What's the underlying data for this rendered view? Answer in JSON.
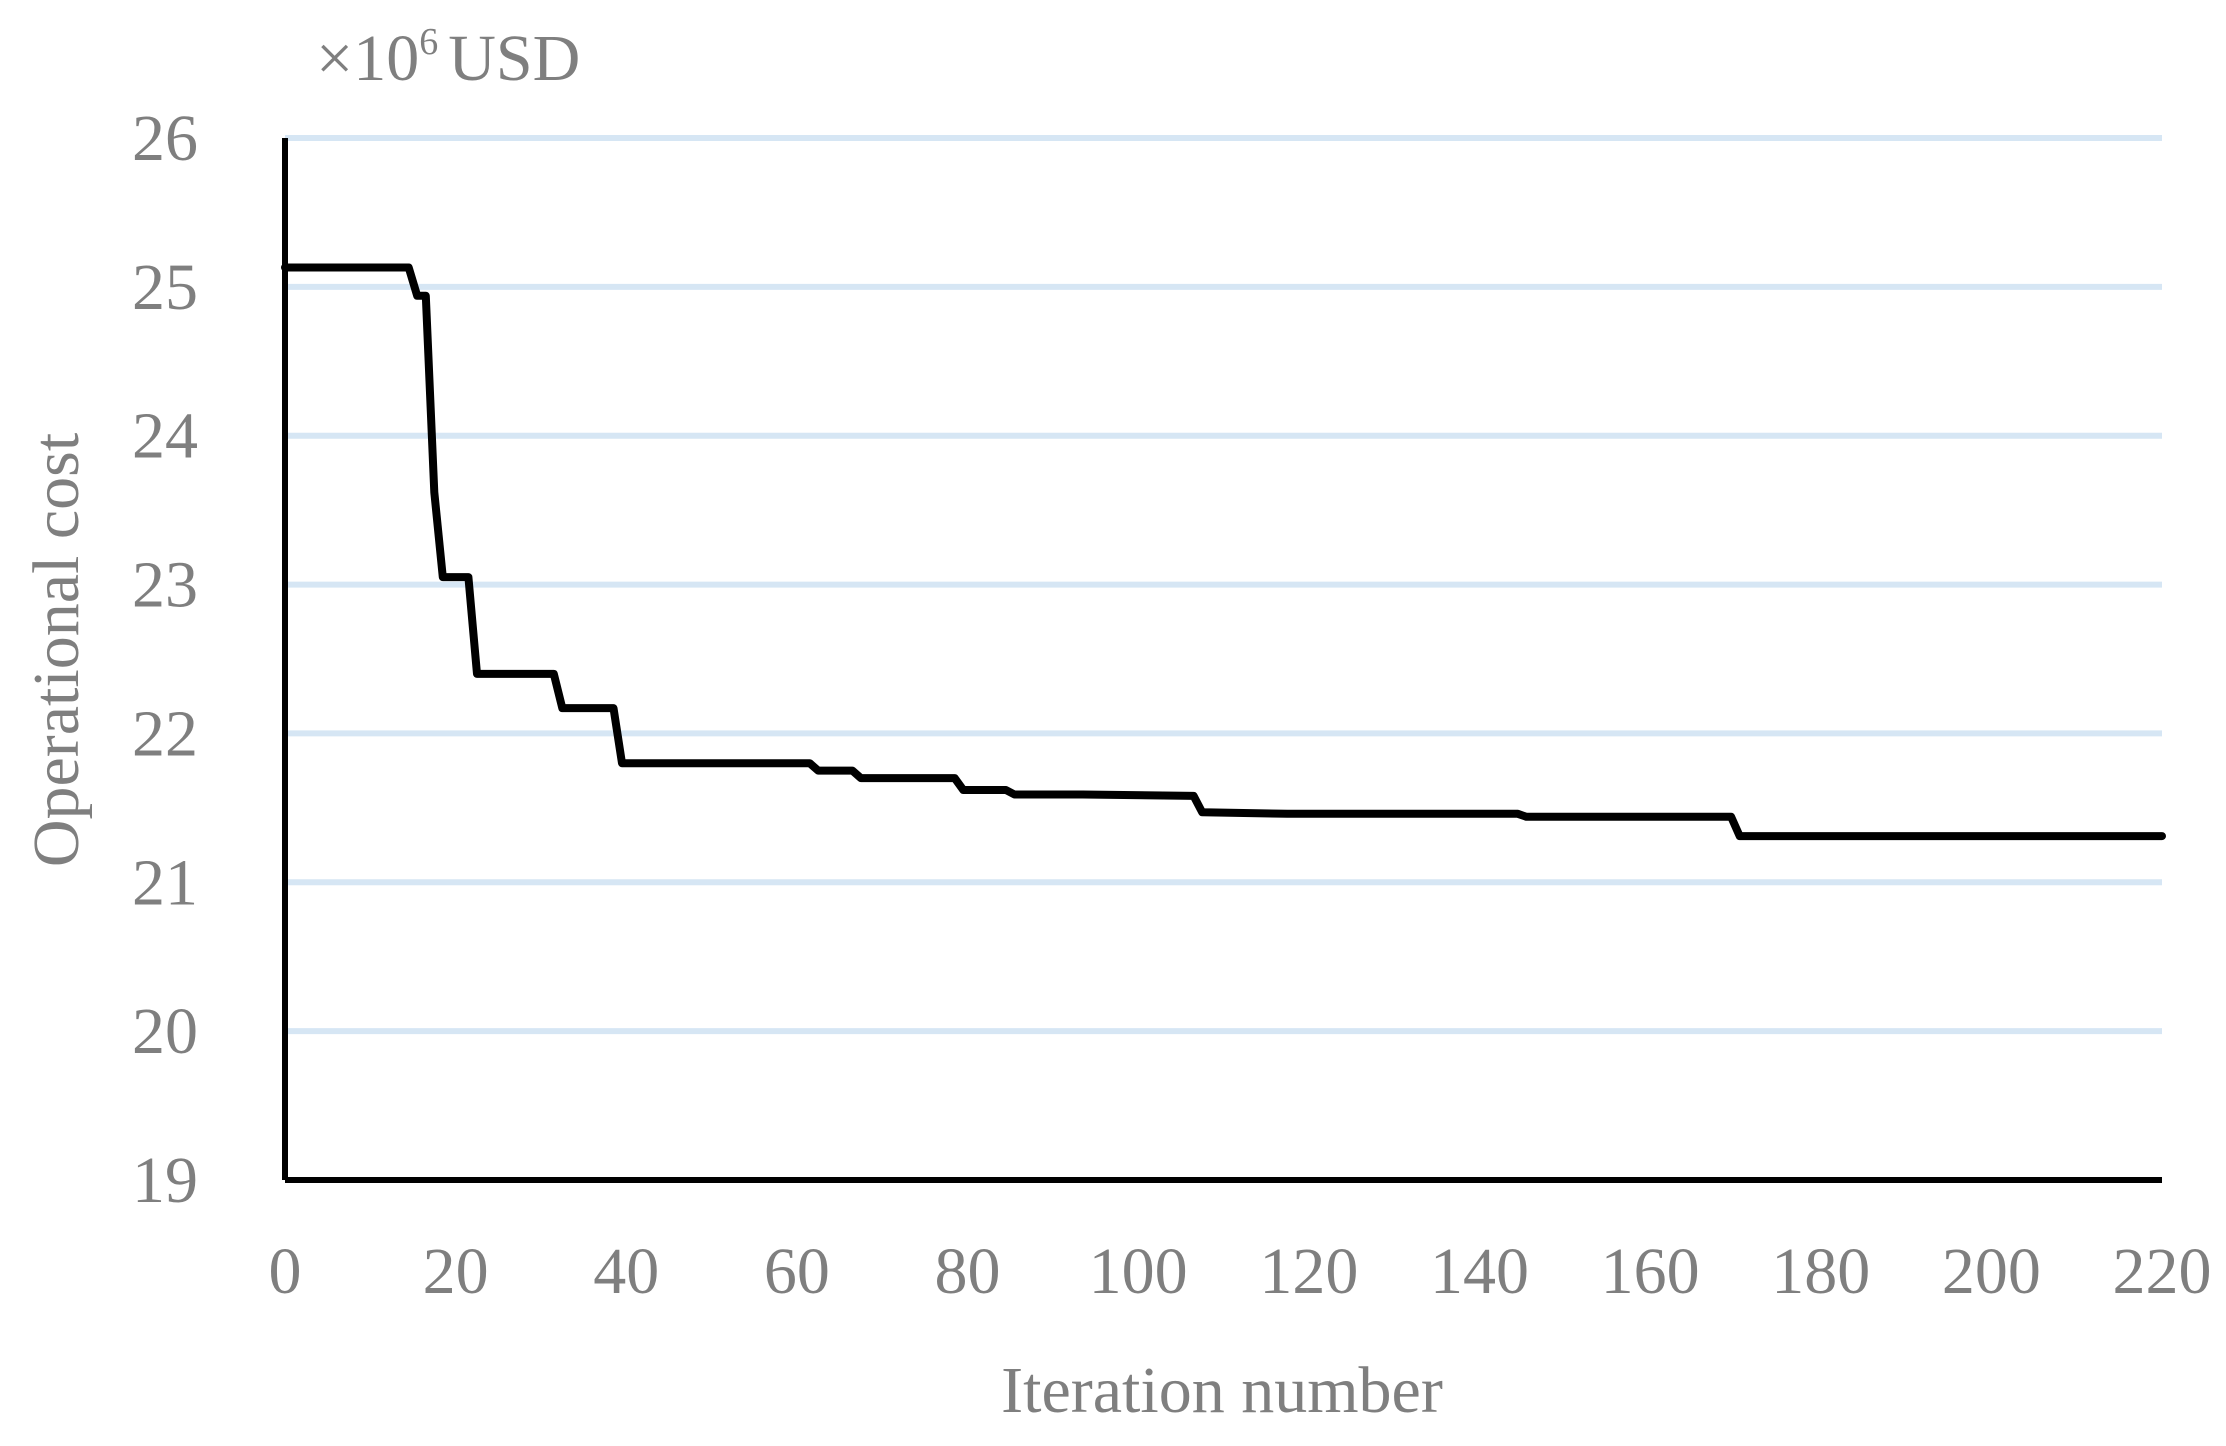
{
  "chart_data": {
    "type": "line",
    "title": "",
    "unit_label": {
      "prefix": "×10",
      "superscript": "6",
      "suffix": "USD"
    },
    "xlabel": "Iteration number",
    "ylabel": "Operational cost",
    "xlim": [
      0,
      220
    ],
    "ylim": [
      19,
      26
    ],
    "x_ticks": [
      0,
      20,
      40,
      60,
      80,
      100,
      120,
      140,
      160,
      180,
      200,
      220
    ],
    "y_ticks": [
      19,
      20,
      21,
      22,
      23,
      24,
      25,
      26
    ],
    "grid": "horizontal",
    "legend": "none",
    "series": [
      {
        "color": "#000000",
        "x": [
          0,
          14.5,
          15.5,
          16.5,
          17.5,
          18.5,
          21.5,
          22.5,
          31.5,
          32.5,
          38.5,
          39.5,
          61.5,
          62.5,
          66.5,
          67.5,
          78.5,
          79.5,
          84.5,
          85.5,
          93.5,
          106.5,
          107.5,
          117.5,
          144.5,
          145.5,
          169.5,
          170.5,
          220
        ],
        "y": [
          25.13,
          25.13,
          24.94,
          24.94,
          23.62,
          23.05,
          23.05,
          22.4,
          22.4,
          22.17,
          22.17,
          21.8,
          21.8,
          21.75,
          21.75,
          21.7,
          21.7,
          21.62,
          21.62,
          21.59,
          21.59,
          21.58,
          21.47,
          21.46,
          21.46,
          21.44,
          21.44,
          21.31,
          21.31
        ]
      }
    ]
  }
}
